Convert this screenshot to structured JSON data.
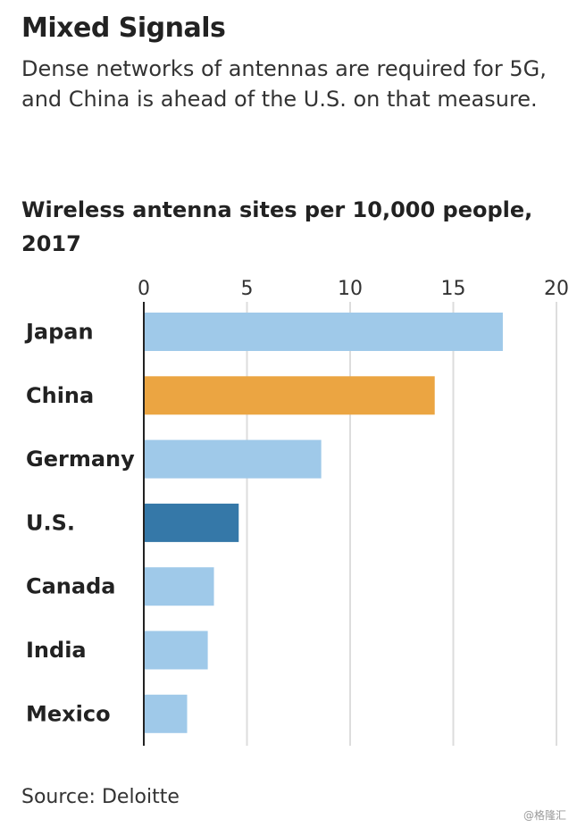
{
  "chart_data": {
    "type": "bar",
    "orientation": "horizontal",
    "title": "Mixed Signals",
    "subtitle": "Dense networks of antennas are required for 5G, and China is ahead of the U.S. on that measure.",
    "chart_title": "Wireless antenna sites per 10,000 people, 2017",
    "categories": [
      "Japan",
      "China",
      "Germany",
      "U.S.",
      "Canada",
      "India",
      "Mexico"
    ],
    "values": [
      17.4,
      14.1,
      8.6,
      4.6,
      3.4,
      3.1,
      2.1
    ],
    "colors": [
      "#9fc9e9",
      "#eba542",
      "#9fc9e9",
      "#3578a8",
      "#9fc9e9",
      "#9fc9e9",
      "#9fc9e9"
    ],
    "xlim": [
      0,
      20
    ],
    "xticks": [
      0,
      5,
      10,
      15,
      20
    ],
    "xtick_labels": [
      "0",
      "5",
      "10",
      "15",
      "20"
    ],
    "grid": true,
    "source": "Source: Deloitte"
  },
  "watermark": "@格隆汇"
}
